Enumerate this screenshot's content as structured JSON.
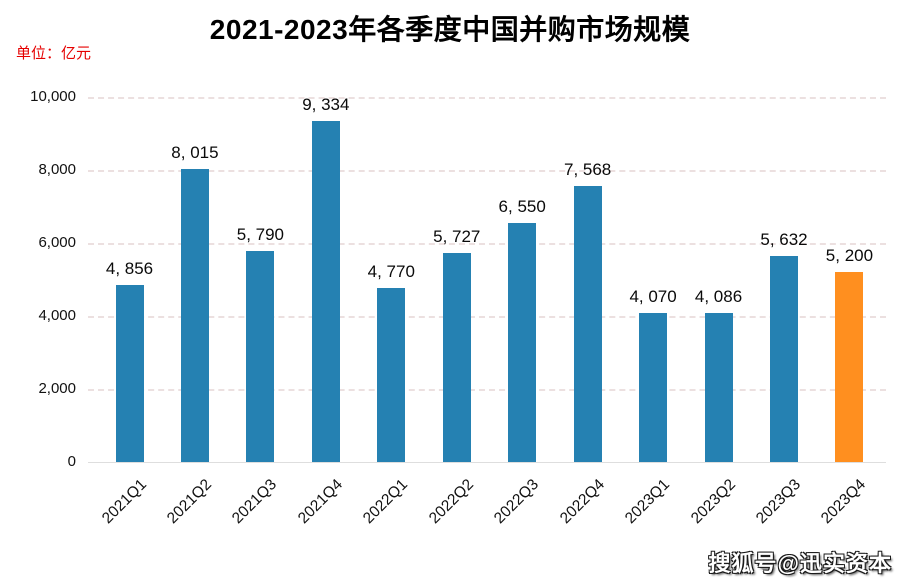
{
  "header": {
    "title": "2021-2023年各季度中国并购市场规模",
    "unit_label": "单位：亿元"
  },
  "watermark": {
    "text": "搜狐号@迅实资本"
  },
  "colors": {
    "bar_blue": "#2581b2",
    "bar_highlight_orange": "#ff8f1f",
    "unit_label_red": "#e60000",
    "grid_line": "#ece0e0",
    "axis_line": "#dedede",
    "text_black": "#000000"
  },
  "chart_data": {
    "type": "bar",
    "title": "2021-2023年各季度中国并购市场规模",
    "xlabel": "",
    "ylabel": "单位：亿元",
    "ylim": [
      0,
      10000
    ],
    "grid": "horizontal-dashed",
    "legend": "none",
    "categories": [
      "2021Q1",
      "2021Q2",
      "2021Q3",
      "2021Q4",
      "2022Q1",
      "2022Q2",
      "2022Q3",
      "2022Q4",
      "2023Q1",
      "2023Q2",
      "2023Q3",
      "2023Q4"
    ],
    "values": [
      4856,
      8015,
      5790,
      9334,
      4770,
      5727,
      6550,
      7568,
      4070,
      4086,
      5632,
      5200
    ],
    "value_labels": [
      "4, 856",
      "8, 015",
      "5, 790",
      "9, 334",
      "4, 770",
      "5, 727",
      "6, 550",
      "7, 568",
      "4, 070",
      "4, 086",
      "5, 632",
      "5, 200"
    ],
    "highlight_index": 11,
    "y_ticks": [
      {
        "label": "0",
        "value": 0
      },
      {
        "label": "2,000",
        "value": 2000
      },
      {
        "label": "4,000",
        "value": 4000
      },
      {
        "label": "6,000",
        "value": 6000
      },
      {
        "label": "8,000",
        "value": 8000
      },
      {
        "label": "10,000",
        "value": 10000
      }
    ]
  }
}
